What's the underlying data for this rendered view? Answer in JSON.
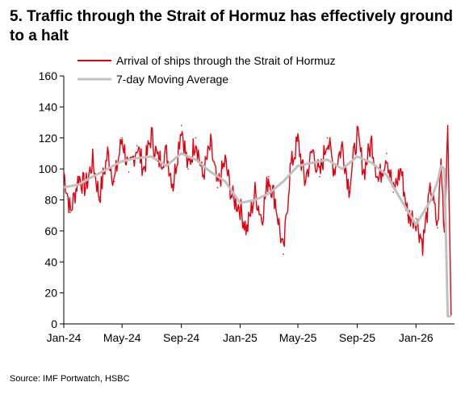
{
  "title": "5. Traffic through the Strait of Hormuz has effectively ground to a halt",
  "source": "Source: IMF Portwatch, HSBC",
  "chart_data": {
    "type": "line",
    "title": "5. Traffic through the Strait of Hormuz has effectively ground to a halt",
    "xlabel": "",
    "ylabel": "",
    "ylim": [
      0,
      160
    ],
    "yticks": [
      0,
      20,
      40,
      60,
      80,
      100,
      120,
      140,
      160
    ],
    "x_tick_labels": [
      "Jan-24",
      "May-24",
      "Sep-24",
      "Jan-25",
      "May-25",
      "Sep-25",
      "Jan-26"
    ],
    "grid": false,
    "legend_position": "top",
    "colors": {
      "Arrival of ships through the Strait of Hormuz": "#e3000f",
      "7-day Moving Average": "#c0c0c0"
    },
    "series": [
      {
        "name": "Arrival of ships through the Strait of Hormuz",
        "x": [
          "2024-01-01",
          "2024-01-15",
          "2024-02-01",
          "2024-02-15",
          "2024-03-01",
          "2024-03-15",
          "2024-04-01",
          "2024-04-15",
          "2024-05-01",
          "2024-05-15",
          "2024-06-01",
          "2024-06-15",
          "2024-07-01",
          "2024-07-15",
          "2024-08-01",
          "2024-08-15",
          "2024-09-01",
          "2024-09-15",
          "2024-10-01",
          "2024-10-15",
          "2024-11-01",
          "2024-11-15",
          "2024-12-01",
          "2024-12-15",
          "2025-01-01",
          "2025-01-15",
          "2025-02-01",
          "2025-02-15",
          "2025-03-01",
          "2025-03-15",
          "2025-04-01",
          "2025-04-15",
          "2025-05-01",
          "2025-05-15",
          "2025-06-01",
          "2025-06-15",
          "2025-07-01",
          "2025-07-15",
          "2025-08-01",
          "2025-08-15",
          "2025-09-01",
          "2025-09-15",
          "2025-10-01",
          "2025-10-15",
          "2025-11-01",
          "2025-11-15",
          "2025-12-01",
          "2025-12-15",
          "2026-01-01",
          "2026-01-15",
          "2026-02-01",
          "2026-02-15",
          "2026-02-22",
          "2026-03-01",
          "2026-03-08",
          "2026-03-15"
        ],
        "values": [
          98,
          72,
          95,
          88,
          105,
          82,
          110,
          92,
          120,
          98,
          115,
          100,
          122,
          105,
          110,
          90,
          128,
          100,
          120,
          95,
          115,
          88,
          105,
          82,
          75,
          60,
          85,
          68,
          95,
          80,
          45,
          100,
          118,
          92,
          112,
          95,
          120,
          100,
          115,
          88,
          122,
          98,
          118,
          92,
          110,
          85,
          100,
          70,
          68,
          52,
          88,
          62,
          105,
          60,
          128,
          6
        ]
      },
      {
        "name": "7-day Moving Average",
        "x": [
          "2024-01-01",
          "2024-02-01",
          "2024-03-01",
          "2024-04-01",
          "2024-05-01",
          "2024-06-01",
          "2024-07-01",
          "2024-08-01",
          "2024-09-01",
          "2024-10-01",
          "2024-11-01",
          "2024-12-01",
          "2025-01-01",
          "2025-02-01",
          "2025-03-01",
          "2025-04-01",
          "2025-05-01",
          "2025-06-01",
          "2025-07-01",
          "2025-08-01",
          "2025-09-01",
          "2025-10-01",
          "2025-11-01",
          "2025-12-01",
          "2026-01-01",
          "2026-02-01",
          "2026-02-15",
          "2026-02-22",
          "2026-03-01",
          "2026-03-08",
          "2026-03-15"
        ],
        "values": [
          88,
          90,
          95,
          100,
          105,
          107,
          108,
          102,
          110,
          106,
          98,
          92,
          78,
          80,
          84,
          92,
          102,
          104,
          106,
          100,
          108,
          104,
          96,
          80,
          64,
          80,
          92,
          102,
          100,
          5,
          5
        ]
      }
    ]
  }
}
